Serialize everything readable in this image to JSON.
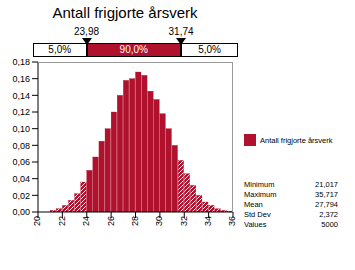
{
  "chart_data": {
    "type": "histogram",
    "title": "Antall frigjorte årsverk",
    "bins": [
      21.0,
      21.5,
      22.0,
      22.5,
      23.0,
      23.5,
      24.0,
      24.5,
      25.0,
      25.5,
      26.0,
      26.5,
      27.0,
      27.5,
      28.0,
      28.5,
      29.0,
      29.5,
      30.0,
      30.5,
      31.0,
      31.5,
      32.0,
      32.5,
      33.0,
      33.5,
      34.0,
      34.5,
      35.0,
      35.5,
      36.0
    ],
    "series": [
      {
        "name": "Antall frigjorte årsverk",
        "color": "#b0112d",
        "values": [
          0.002,
          0.004,
          0.008,
          0.014,
          0.022,
          0.036,
          0.05,
          0.066,
          0.085,
          0.1,
          0.12,
          0.14,
          0.158,
          0.16,
          0.168,
          0.164,
          0.145,
          0.135,
          0.118,
          0.1,
          0.08,
          0.062,
          0.046,
          0.032,
          0.02,
          0.012,
          0.008,
          0.004,
          0.002,
          0.001
        ]
      }
    ],
    "xlim": [
      20,
      36
    ],
    "xticks": [
      20,
      22,
      24,
      26,
      28,
      30,
      32,
      34,
      36
    ],
    "ylim": [
      0,
      0.18
    ],
    "yticks": [
      {
        "value": 0,
        "label": "0,00"
      },
      {
        "value": 0.02,
        "label": "0,02"
      },
      {
        "value": 0.04,
        "label": "0,04"
      },
      {
        "value": 0.06,
        "label": "0,06"
      },
      {
        "value": 0.08,
        "label": "0,08"
      },
      {
        "value": 0.1,
        "label": "0,10"
      },
      {
        "value": 0.12,
        "label": "0,12"
      },
      {
        "value": 0.14,
        "label": "0,14"
      },
      {
        "value": 0.16,
        "label": "0,16"
      },
      {
        "value": 0.18,
        "label": "0,18"
      }
    ],
    "grid": false,
    "markers": [
      {
        "value": 23.98,
        "label": "23,98"
      },
      {
        "value": 31.74,
        "label": "31,74"
      }
    ],
    "band": [
      {
        "value": 5,
        "label": "5,0%"
      },
      {
        "value": 90,
        "label": "90,0%"
      },
      {
        "value": 5,
        "label": "5,0%"
      }
    ],
    "statistics": [
      {
        "name": "Minimum",
        "value": 21.017,
        "label": "21,017"
      },
      {
        "name": "Maximum",
        "value": 35.717,
        "label": "35,717"
      },
      {
        "name": "Mean",
        "value": 27.794,
        "label": "27,794"
      },
      {
        "name": "Std Dev",
        "value": 2.372,
        "label": "2,372"
      },
      {
        "name": "Values",
        "value": 5000,
        "label": "5000"
      }
    ]
  }
}
